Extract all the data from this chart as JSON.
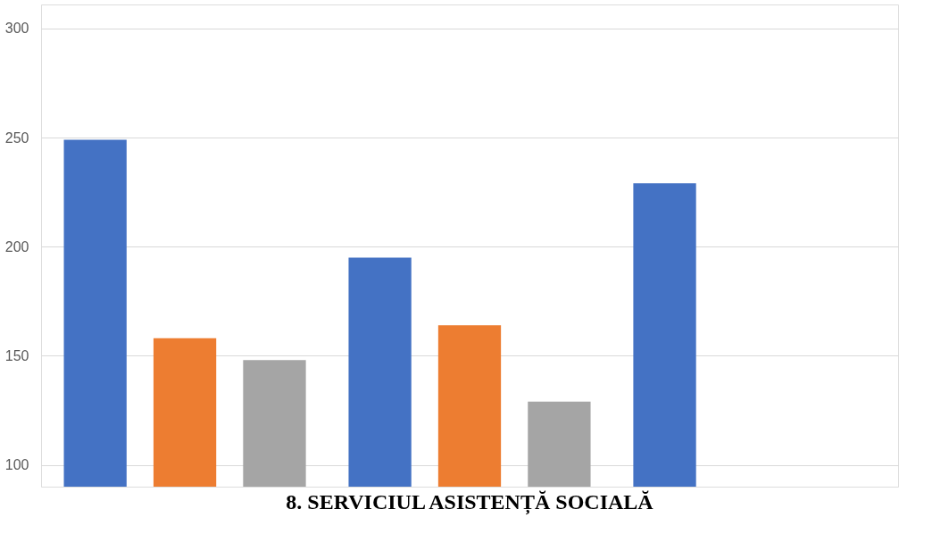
{
  "chart_data": {
    "type": "bar",
    "categories": [
      null,
      null,
      null
    ],
    "series": [
      {
        "color": "#4472c4",
        "values": [
          249,
          195,
          229
        ]
      },
      {
        "color": "#ed7d31",
        "values": [
          158,
          164,
          null
        ]
      },
      {
        "color": "#a5a5a5",
        "values": [
          148,
          129,
          null
        ]
      }
    ],
    "ylim": [
      90,
      311
    ],
    "yticks": [
      100,
      150,
      200,
      250,
      300
    ],
    "grid": "y",
    "tick_labels": "y",
    "annotations": [
      "8.          SERVICIUL ASISTENȚĂ SOCIALĂ"
    ]
  }
}
